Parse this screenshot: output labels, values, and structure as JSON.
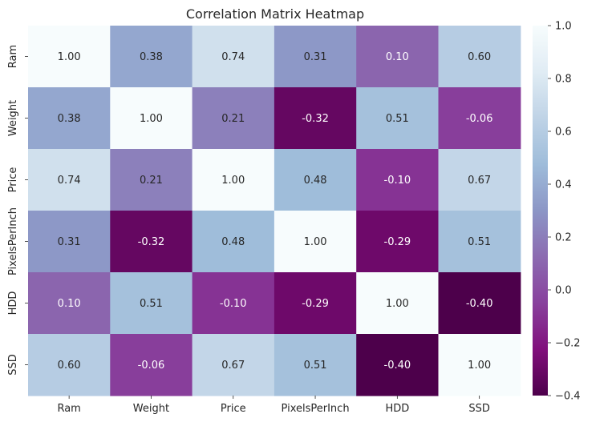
{
  "chart_data": {
    "type": "heatmap",
    "title": "Correlation Matrix Heatmap",
    "xlabel": "",
    "ylabel": "",
    "x_categories": [
      "Ram",
      "Weight",
      "Price",
      "PixelsPerInch",
      "HDD",
      "SSD"
    ],
    "y_categories": [
      "Ram",
      "Weight",
      "Price",
      "PixelsPerInch",
      "HDD",
      "SSD"
    ],
    "values": [
      [
        1.0,
        0.38,
        0.74,
        0.31,
        0.1,
        0.6
      ],
      [
        0.38,
        1.0,
        0.21,
        -0.32,
        0.51,
        -0.06
      ],
      [
        0.74,
        0.21,
        1.0,
        0.48,
        -0.1,
        0.67
      ],
      [
        0.31,
        -0.32,
        0.48,
        1.0,
        -0.29,
        0.51
      ],
      [
        0.1,
        0.51,
        -0.1,
        -0.29,
        1.0,
        -0.4
      ],
      [
        0.6,
        -0.06,
        0.67,
        0.51,
        -0.4,
        1.0
      ]
    ],
    "value_format": "0.00",
    "colormap": "BuPu_r",
    "colorbar": {
      "range": [
        -0.4,
        1.0
      ],
      "ticks": [
        -0.4,
        -0.2,
        0.0,
        0.2,
        0.4,
        0.6,
        0.8,
        1.0
      ],
      "tick_labels": [
        "−0.4",
        "−0.2",
        "0.0",
        "0.2",
        "0.4",
        "0.6",
        "0.8",
        "1.0"
      ]
    },
    "grid": false,
    "legend": "colorbar-right"
  }
}
